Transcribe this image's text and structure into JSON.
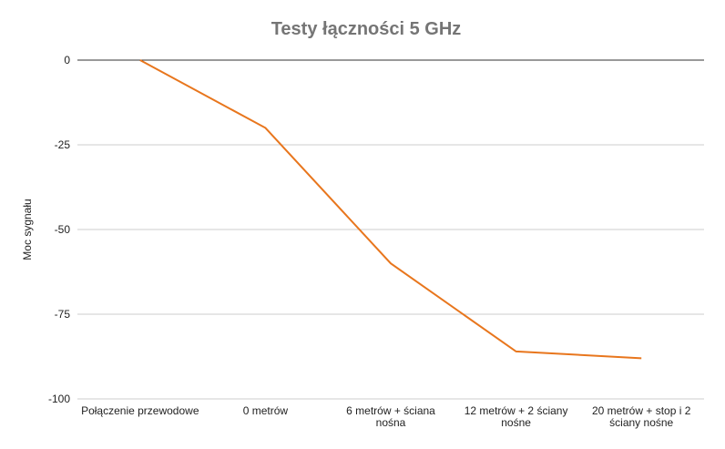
{
  "chart_data": {
    "type": "line",
    "title": "Testy łączności 5 GHz",
    "xlabel": "",
    "ylabel": "Moc sygnału",
    "categories": [
      [
        "Połączenie przewodowe"
      ],
      [
        "0 metrów"
      ],
      [
        "6 metrów + ściana",
        "nośna"
      ],
      [
        "12 metrów + 2 ściany",
        "nośne"
      ],
      [
        "20 metrów + stop i 2",
        "ściany nośne"
      ]
    ],
    "series": [
      {
        "name": "Moc sygnału",
        "values": [
          0,
          -20,
          -60,
          -86,
          -88
        ],
        "color": "#e8761d"
      }
    ],
    "ylim": [
      -100,
      0
    ],
    "yticks": [
      0,
      -25,
      -50,
      -75,
      -100
    ],
    "grid": true,
    "legend": "none"
  }
}
